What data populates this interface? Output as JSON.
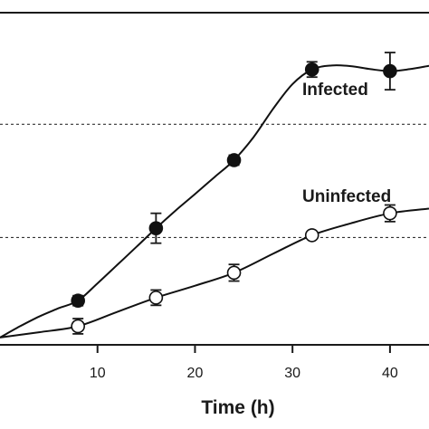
{
  "chart_data": {
    "type": "line",
    "xlabel": "Time (h)",
    "ylabel": "",
    "xlim": [
      0,
      44
    ],
    "ylim": [
      0,
      100
    ],
    "x_ticks": [
      10,
      20,
      30,
      40
    ],
    "reference_lines_y": [
      66.4,
      32.3
    ],
    "grid": false,
    "legend": "direct labels",
    "series": [
      {
        "name": "Infected",
        "marker": "filled-circle",
        "color": "#111111",
        "points": [
          {
            "x": 8,
            "y": 13.3,
            "err": 1.5
          },
          {
            "x": 16,
            "y": 35.1,
            "err": 4.5
          },
          {
            "x": 24,
            "y": 55.6,
            "err": 1.5
          },
          {
            "x": 32,
            "y": 82.9,
            "err": 2.3
          },
          {
            "x": 40,
            "y": 82.4,
            "err": 5.6
          }
        ],
        "curve_x": [
          0,
          2,
          4,
          6,
          8,
          10,
          12,
          14,
          16,
          18,
          20,
          22,
          24,
          26,
          28,
          30,
          32,
          34,
          36,
          38,
          40,
          42,
          44
        ],
        "curve_y": [
          2.2,
          5.5,
          8.5,
          11.0,
          13.3,
          18.5,
          24.0,
          29.5,
          35.1,
          40.4,
          45.4,
          50.5,
          55.6,
          62.5,
          71.0,
          78.5,
          82.9,
          84.1,
          83.9,
          83.0,
          82.4,
          83.0,
          84.0
        ]
      },
      {
        "name": "Uninfected",
        "marker": "open-circle",
        "color": "#111111",
        "points": [
          {
            "x": 8,
            "y": 5.6,
            "err": 2.3
          },
          {
            "x": 16,
            "y": 14.2,
            "err": 2.3
          },
          {
            "x": 24,
            "y": 21.7,
            "err": 2.5
          },
          {
            "x": 32,
            "y": 33.0,
            "err": 1.0
          },
          {
            "x": 40,
            "y": 39.6,
            "err": 2.5
          }
        ],
        "curve_x": [
          0,
          4,
          8,
          12,
          16,
          20,
          24,
          28,
          32,
          36,
          40,
          44
        ],
        "curve_y": [
          2.2,
          3.8,
          5.6,
          9.9,
          14.2,
          17.8,
          21.7,
          27.4,
          33.0,
          36.6,
          39.6,
          41.0
        ]
      }
    ]
  }
}
